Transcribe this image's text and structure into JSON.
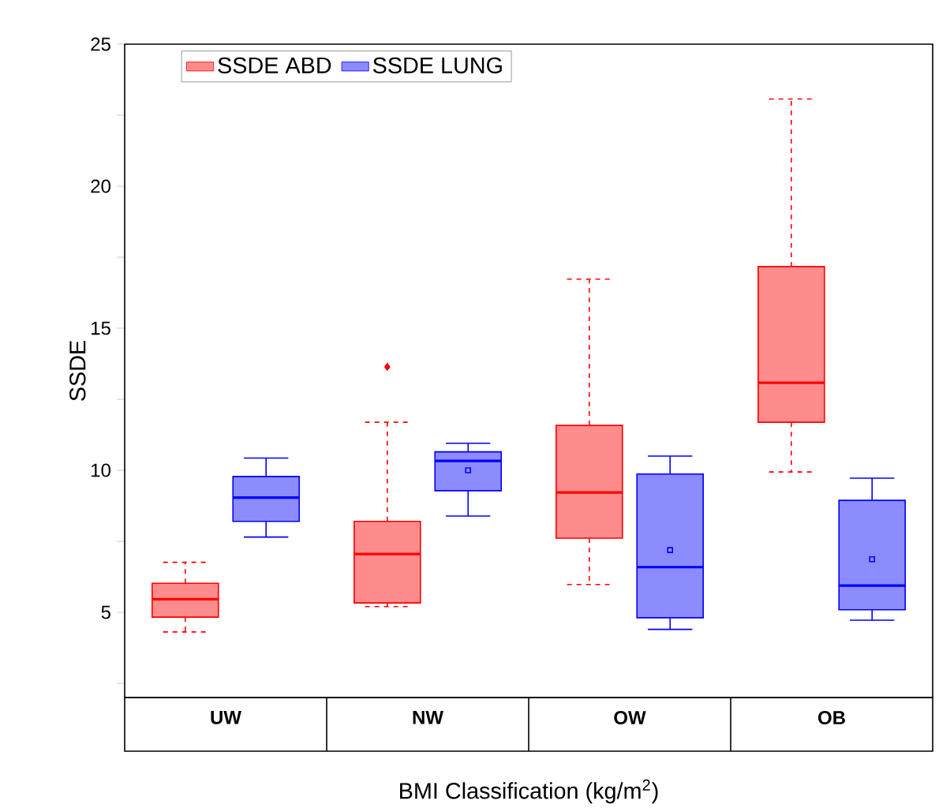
{
  "chart_data": {
    "type": "box",
    "xlabel": "BMI Classification (kg/m$^{2}$)",
    "ylabel": "SSDE",
    "categories": [
      "UW",
      "NW",
      "OW",
      "OB"
    ],
    "ylim": [
      2,
      25
    ],
    "yticks": [
      {
        "value": 2.5,
        "label": null
      },
      5,
      {
        "value": 7.5,
        "label": null
      },
      10,
      {
        "value": 12.5,
        "label": null
      },
      15,
      {
        "value": 17.5,
        "label": null
      },
      20,
      {
        "value": 22.5,
        "label": null
      },
      25
    ],
    "legend": "top left",
    "grid": false,
    "marker": "diamond",
    "series": [
      {
        "name": "SSDE ABD",
        "color": "#ff0000",
        "line_style": "dashed",
        "boxes": [
          {
            "low": 4.31,
            "q1": 4.83,
            "median": 5.46,
            "q3": 6.02,
            "high": 6.76
          },
          {
            "low": 5.2,
            "q1": 5.33,
            "median": 7.05,
            "q3": 8.2,
            "high": 11.69,
            "outliers": [
              13.64
            ]
          },
          {
            "low": 5.98,
            "q1": 7.61,
            "median": 9.22,
            "q3": 11.58,
            "high": 16.73
          },
          {
            "low": 9.94,
            "q1": 11.69,
            "median": 13.08,
            "q3": 17.17,
            "high": 23.07
          }
        ]
      },
      {
        "name": "SSDE LUNG",
        "color": "#0000ff",
        "line_style": "solid",
        "boxes": [
          {
            "low": 7.65,
            "q1": 8.2,
            "median": 9.04,
            "q3": 9.78,
            "high": 10.43
          },
          {
            "low": 8.39,
            "q1": 9.28,
            "median": 10.33,
            "q3": 10.65,
            "high": 10.95,
            "mean": 10.0
          },
          {
            "low": 4.4,
            "q1": 4.81,
            "median": 6.59,
            "q3": 9.87,
            "high": 10.5,
            "mean": 7.19
          },
          {
            "low": 4.72,
            "q1": 5.09,
            "median": 5.94,
            "q3": 8.94,
            "high": 9.72,
            "mean": 6.87
          }
        ]
      }
    ]
  }
}
